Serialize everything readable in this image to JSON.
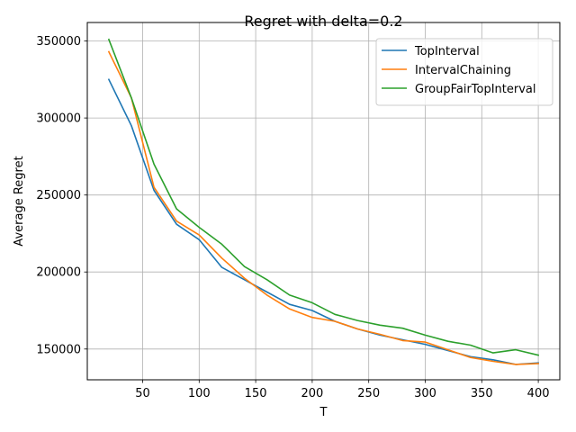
{
  "chart_data": {
    "type": "line",
    "title": "Regret with delta=0.2",
    "xlabel": "T",
    "ylabel": "Average Regret",
    "xlim": [
      1,
      419
    ],
    "ylim": [
      130000,
      362000
    ],
    "xticks": [
      50,
      100,
      150,
      200,
      250,
      300,
      350,
      400
    ],
    "yticks": [
      150000,
      200000,
      250000,
      300000,
      350000
    ],
    "grid": true,
    "legend_position": "top-right",
    "x": [
      20,
      40,
      60,
      80,
      100,
      120,
      140,
      160,
      180,
      200,
      220,
      240,
      260,
      280,
      300,
      320,
      340,
      360,
      380,
      400
    ],
    "series": [
      {
        "name": "TopInterval",
        "color": "#1f77b4",
        "values": [
          325000,
          295000,
          253000,
          231000,
          221000,
          203000,
          195000,
          187000,
          179000,
          175000,
          168000,
          163000,
          159000,
          156000,
          153000,
          149000,
          145000,
          143000,
          140000,
          141000
        ]
      },
      {
        "name": "IntervalChaining",
        "color": "#ff7f0e",
        "values": [
          343000,
          313000,
          255000,
          233000,
          224000,
          209000,
          196000,
          185000,
          176000,
          170500,
          168000,
          163000,
          159500,
          155500,
          154500,
          149500,
          144500,
          142000,
          140000,
          140500
        ]
      },
      {
        "name": "GroupFairTopInterval",
        "color": "#2ca02c",
        "values": [
          351000,
          313000,
          270000,
          241000,
          229000,
          218000,
          203500,
          195000,
          185000,
          180000,
          172500,
          168500,
          165500,
          163500,
          159000,
          155000,
          152500,
          147500,
          149500,
          146000
        ]
      }
    ]
  }
}
